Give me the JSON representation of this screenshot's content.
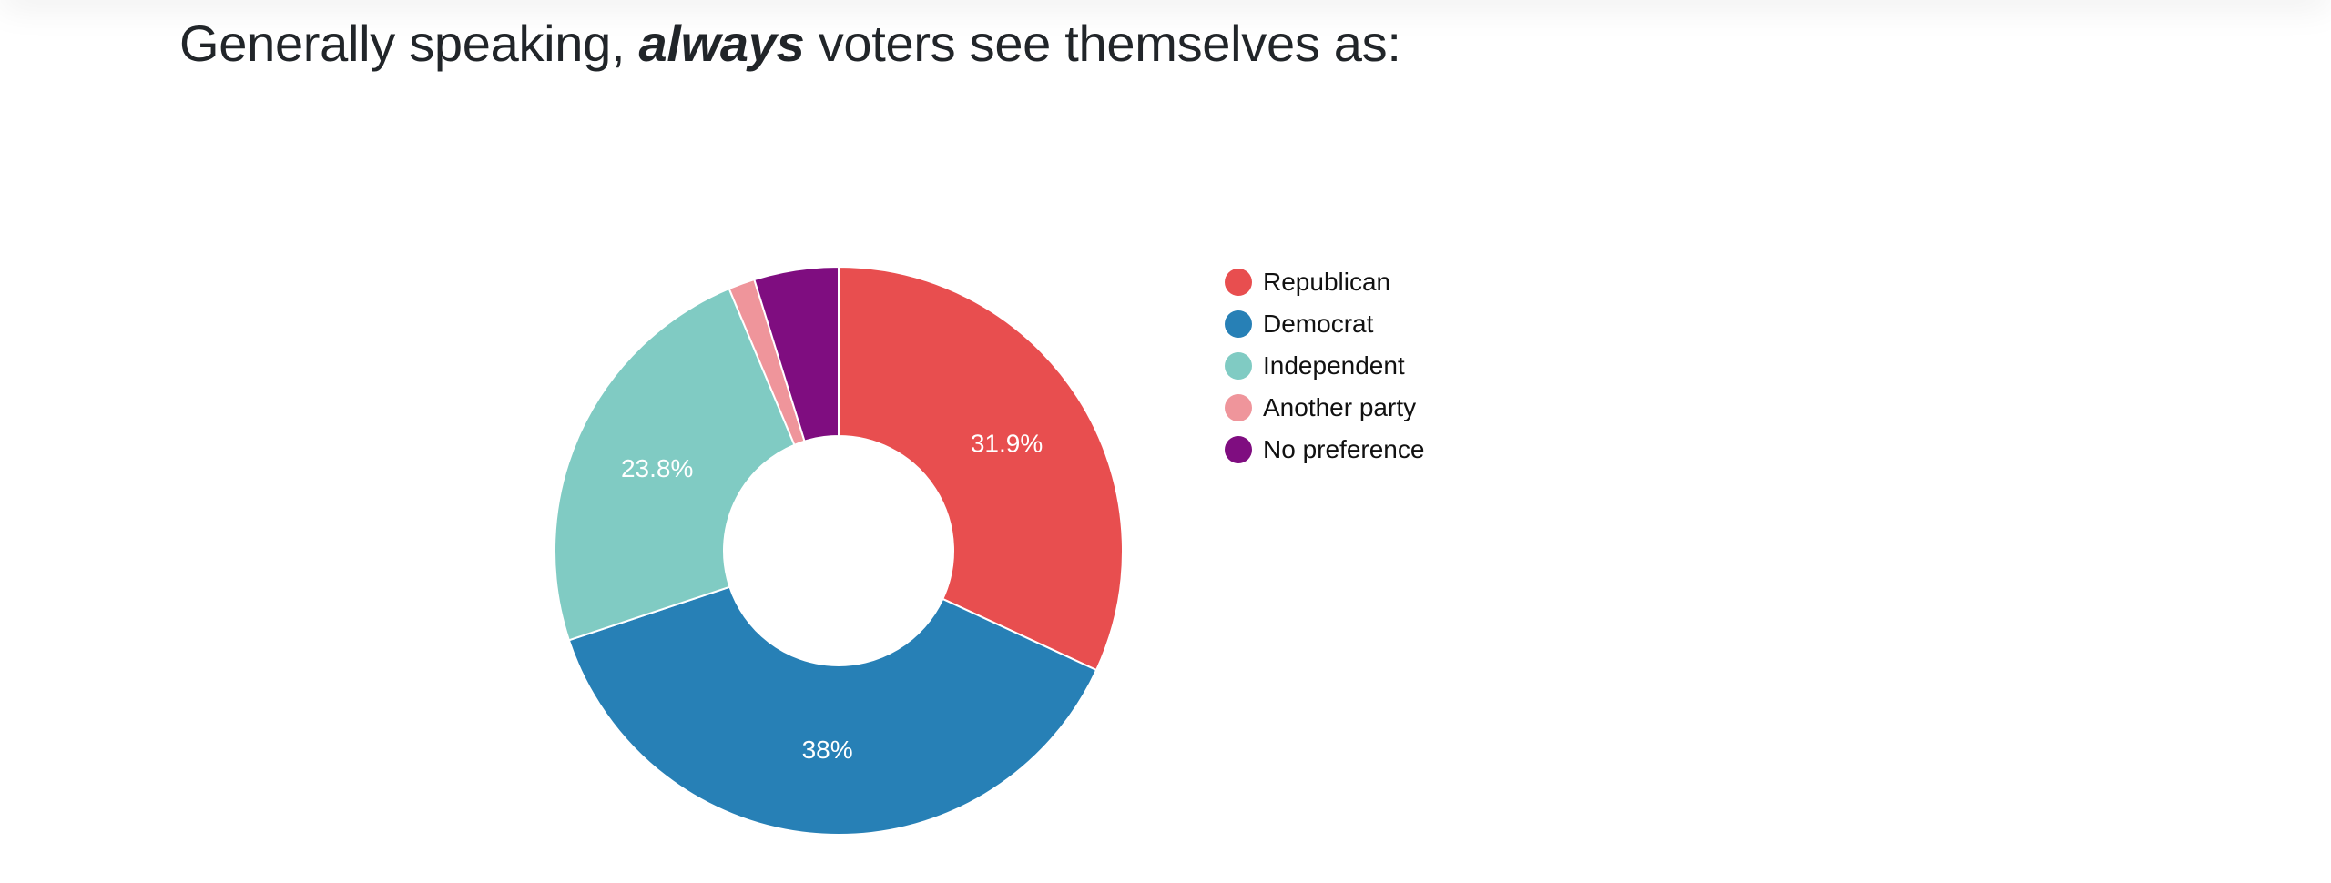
{
  "page": {
    "title_before": "Generally speaking,",
    "title_emphasis": "always",
    "title_after": "voters see themselves as:"
  },
  "chart_data": {
    "type": "pie",
    "variant": "donut",
    "categories": [
      "Republican",
      "Democrat",
      "Independent",
      "Another party",
      "No preference"
    ],
    "values": [
      31.9,
      38,
      23.8,
      1.5,
      4.8
    ],
    "data_labels": [
      "31.9%",
      "38%",
      "23.8%",
      "",
      ""
    ],
    "colors": [
      "#e84e4f",
      "#2780b6",
      "#80cbc3",
      "#ef959b",
      "#7f0d80"
    ],
    "legend_position": "right"
  }
}
